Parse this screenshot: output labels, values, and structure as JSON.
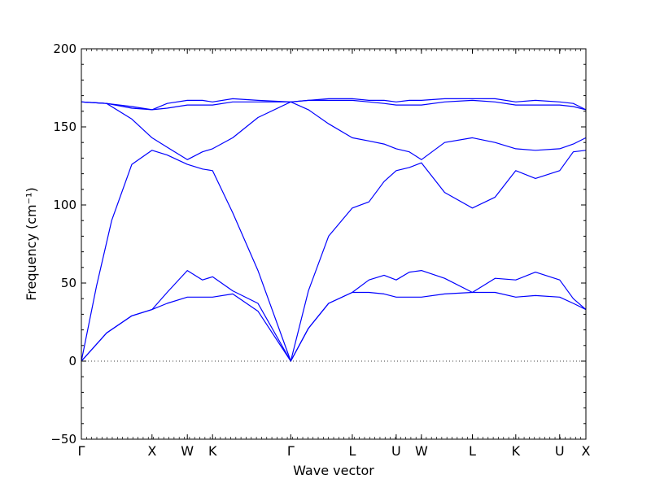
{
  "chart_data": {
    "type": "line",
    "xlabel": "Wave vector",
    "ylabel": "Frequency (cm⁻¹)",
    "ylim": [
      -50,
      200
    ],
    "yticks": [
      -50,
      0,
      50,
      100,
      150,
      200
    ],
    "grid": false,
    "zero_line": true,
    "line_color": "#0000ff",
    "x_ticks": [
      {
        "label": "Γ",
        "pos": 0.0
      },
      {
        "label": "X",
        "pos": 0.14
      },
      {
        "label": "W",
        "pos": 0.21
      },
      {
        "label": "K",
        "pos": 0.26
      },
      {
        "label": "Γ",
        "pos": 0.415
      },
      {
        "label": "L",
        "pos": 0.537
      },
      {
        "label": "U",
        "pos": 0.624
      },
      {
        "label": "W",
        "pos": 0.674
      },
      {
        "label": "L",
        "pos": 0.775
      },
      {
        "label": "K",
        "pos": 0.861
      },
      {
        "label": "U",
        "pos": 0.948
      },
      {
        "label": "X",
        "pos": 1.0
      }
    ],
    "series": [
      {
        "x": [
          0,
          0.05,
          0.1,
          0.14,
          0.17,
          0.21,
          0.24,
          0.26,
          0.3,
          0.35,
          0.415,
          0.45,
          0.49,
          0.537,
          0.57,
          0.6,
          0.624,
          0.65,
          0.674,
          0.72,
          0.775,
          0.82,
          0.861,
          0.9,
          0.948,
          0.975,
          1.0
        ],
        "y": [
          0,
          18,
          29,
          33,
          37,
          41,
          41,
          41,
          43,
          32,
          0,
          21,
          37,
          44,
          44,
          43,
          41,
          41,
          41,
          43,
          44,
          44,
          41,
          42,
          41,
          37,
          33
        ]
      },
      {
        "x": [
          0,
          0.05,
          0.1,
          0.14,
          0.17,
          0.21,
          0.24,
          0.26,
          0.3,
          0.35,
          0.415,
          0.45,
          0.49,
          0.537,
          0.57,
          0.6,
          0.624,
          0.65,
          0.674,
          0.72,
          0.775,
          0.82,
          0.861,
          0.9,
          0.948,
          0.975,
          1.0
        ],
        "y": [
          0,
          18,
          29,
          33,
          44,
          58,
          52,
          54,
          45,
          37,
          0,
          21,
          37,
          44,
          52,
          55,
          52,
          57,
          58,
          53,
          44,
          53,
          52,
          57,
          52,
          40,
          33
        ]
      },
      {
        "x": [
          0,
          0.03,
          0.06,
          0.1,
          0.14,
          0.17,
          0.21,
          0.24,
          0.26,
          0.3,
          0.35,
          0.415,
          0.45,
          0.49,
          0.537,
          0.57,
          0.6,
          0.624,
          0.65,
          0.674,
          0.72,
          0.775,
          0.82,
          0.861,
          0.9,
          0.948,
          0.975,
          1.0
        ],
        "y": [
          0,
          48,
          90,
          126,
          135,
          132,
          126,
          123,
          122,
          95,
          58,
          0,
          45,
          80,
          98,
          102,
          115,
          122,
          124,
          127,
          108,
          98,
          105,
          122,
          117,
          122,
          134,
          135
        ]
      },
      {
        "x": [
          0,
          0.05,
          0.1,
          0.14,
          0.17,
          0.21,
          0.24,
          0.26,
          0.3,
          0.35,
          0.415,
          0.45,
          0.49,
          0.537,
          0.57,
          0.6,
          0.624,
          0.65,
          0.674,
          0.72,
          0.775,
          0.82,
          0.861,
          0.9,
          0.948,
          0.975,
          1.0
        ],
        "y": [
          166,
          165,
          155,
          143,
          137,
          129,
          134,
          136,
          143,
          156,
          166,
          161,
          152,
          143,
          141,
          139,
          136,
          134,
          129,
          140,
          143,
          140,
          136,
          135,
          136,
          139,
          143
        ]
      },
      {
        "x": [
          0,
          0.05,
          0.1,
          0.14,
          0.17,
          0.21,
          0.24,
          0.26,
          0.3,
          0.35,
          0.415,
          0.45,
          0.49,
          0.537,
          0.57,
          0.6,
          0.624,
          0.65,
          0.674,
          0.72,
          0.775,
          0.82,
          0.861,
          0.9,
          0.948,
          0.975,
          1.0
        ],
        "y": [
          166,
          165,
          162,
          161,
          162,
          164,
          164,
          164,
          166,
          166,
          166,
          167,
          167,
          167,
          166,
          165,
          164,
          164,
          164,
          166,
          167,
          166,
          164,
          164,
          164,
          163,
          161
        ]
      },
      {
        "x": [
          0,
          0.05,
          0.1,
          0.14,
          0.17,
          0.21,
          0.24,
          0.26,
          0.3,
          0.35,
          0.415,
          0.45,
          0.49,
          0.537,
          0.57,
          0.6,
          0.624,
          0.65,
          0.674,
          0.72,
          0.775,
          0.82,
          0.861,
          0.9,
          0.948,
          0.975,
          1.0
        ],
        "y": [
          166,
          165,
          163,
          161,
          165,
          167,
          167,
          166,
          168,
          167,
          166,
          167,
          168,
          168,
          167,
          167,
          166,
          167,
          167,
          168,
          168,
          168,
          166,
          167,
          166,
          165,
          161
        ]
      }
    ]
  }
}
